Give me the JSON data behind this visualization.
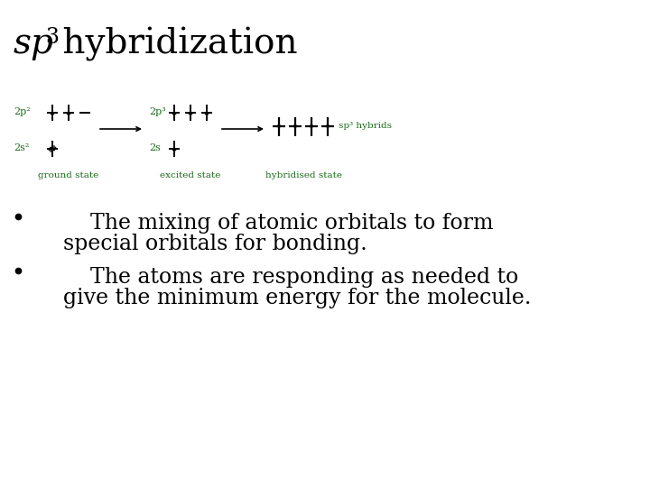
{
  "bg_color": "#ffffff",
  "text_color": "#000000",
  "green_color": "#1a6b1a",
  "label_ground": "ground state",
  "label_excited": "excited state",
  "label_hybridised": "hybridised state",
  "label_2p2": "2p²",
  "label_2p3": "2p³",
  "label_2s2": "2s²",
  "label_2s": "2s",
  "label_sp3hybrids": "sp³ hybrids",
  "title_sp": "sp",
  "title_sup": "3",
  "title_rest": " hybridization",
  "bullet1_indent": "        The mixing of atomic orbitals to form",
  "bullet1_cont": "    special orbitals for bonding.",
  "bullet2_indent": "        The atoms are responding as needed to",
  "bullet2_cont": "    give the minimum energy for the molecule."
}
